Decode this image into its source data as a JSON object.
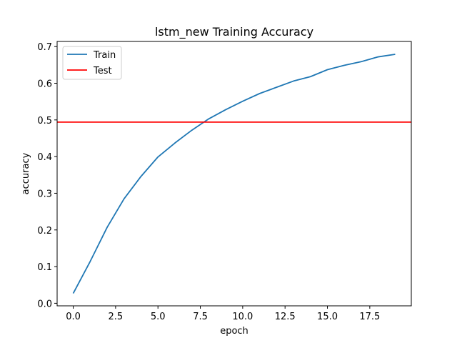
{
  "chart_data": {
    "type": "line",
    "title": "lstm_new Training Accuracy",
    "xlabel": "epoch",
    "ylabel": "accuracy",
    "xlim": [
      -0.95,
      19.95
    ],
    "ylim": [
      -0.007,
      0.714
    ],
    "x_ticks": [
      0.0,
      2.5,
      5.0,
      7.5,
      10.0,
      12.5,
      15.0,
      17.5
    ],
    "x_tick_labels": [
      "0.0",
      "2.5",
      "5.0",
      "7.5",
      "10.0",
      "12.5",
      "15.0",
      "17.5"
    ],
    "y_ticks": [
      0.0,
      0.1,
      0.2,
      0.3,
      0.4,
      0.5,
      0.6,
      0.7
    ],
    "y_tick_labels": [
      "0.0",
      "0.1",
      "0.2",
      "0.3",
      "0.4",
      "0.5",
      "0.6",
      "0.7"
    ],
    "grid": false,
    "legend_position": "upper-left",
    "series": [
      {
        "name": "Train",
        "color": "#1f77b4",
        "x": [
          0,
          1,
          2,
          3,
          4,
          5,
          6,
          7,
          8,
          9,
          10,
          11,
          12,
          13,
          14,
          15,
          16,
          17,
          18,
          19
        ],
        "values": [
          0.027,
          0.114,
          0.207,
          0.285,
          0.346,
          0.399,
          0.437,
          0.472,
          0.503,
          0.528,
          0.551,
          0.572,
          0.589,
          0.606,
          0.618,
          0.637,
          0.649,
          0.659,
          0.672,
          0.679
        ]
      },
      {
        "name": "Test",
        "color": "#ff0000",
        "type": "hline",
        "value": 0.494
      }
    ]
  }
}
